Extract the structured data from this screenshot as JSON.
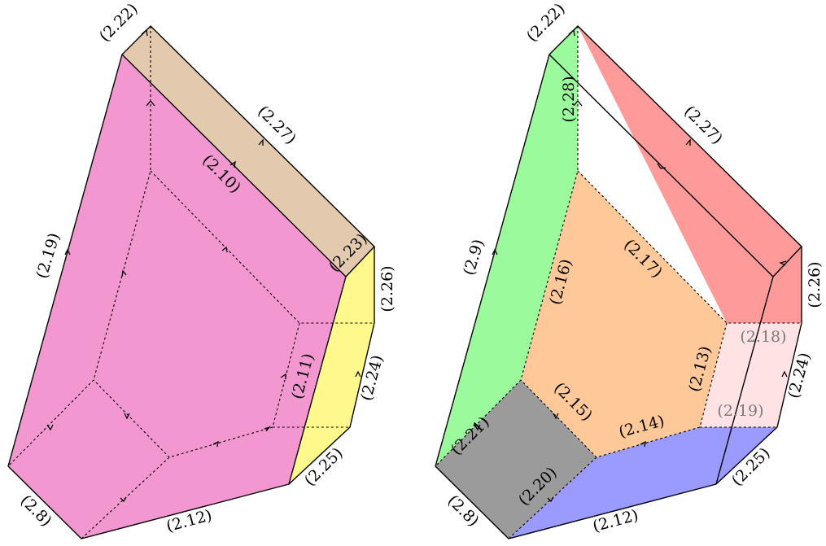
{
  "colors": {
    "pink": "#F397D0",
    "tan": "#E3C9AE",
    "yellow": "#FFF88C",
    "green": "#9BFA9B",
    "red": "#FF9A9A",
    "orange": "#FFC898",
    "light_pink": "#FFE2E4",
    "gray": "#9B9B9B",
    "blue": "#9A9AFF"
  },
  "left_figure": {
    "labels": {
      "l_2_22": "(2.22)",
      "l_2_27": "(2.27)",
      "l_2_10": "(2.10)",
      "l_2_19": "(2.19)",
      "l_2_23": "(2.23)",
      "l_2_26": "(2.26)",
      "l_2_11": "(2.11)",
      "l_2_24": "(2.24)",
      "l_2_25": "(2.25)",
      "l_2_8": "(2.8)",
      "l_2_12": "(2.12)"
    }
  },
  "right_figure": {
    "labels": {
      "r_2_22": "(2.22)",
      "r_2_28": "(2.28)",
      "r_2_27": "(2.27)",
      "r_2_9": "(2.9)",
      "r_2_17": "(2.17)",
      "r_2_16": "(2.16)",
      "r_2_26": "(2.26)",
      "r_2_18": "(2.18)",
      "r_2_13": "(2.13)",
      "r_2_24": "(2.24)",
      "r_2_19": "(2.19)",
      "r_2_15": "(2.15)",
      "r_2_14": "(2.14)",
      "r_2_21": "(2.21)",
      "r_2_20": "(2.20)",
      "r_2_25": "(2.25)",
      "r_2_8": "(2.8)",
      "r_2_12": "(2.12)"
    }
  }
}
